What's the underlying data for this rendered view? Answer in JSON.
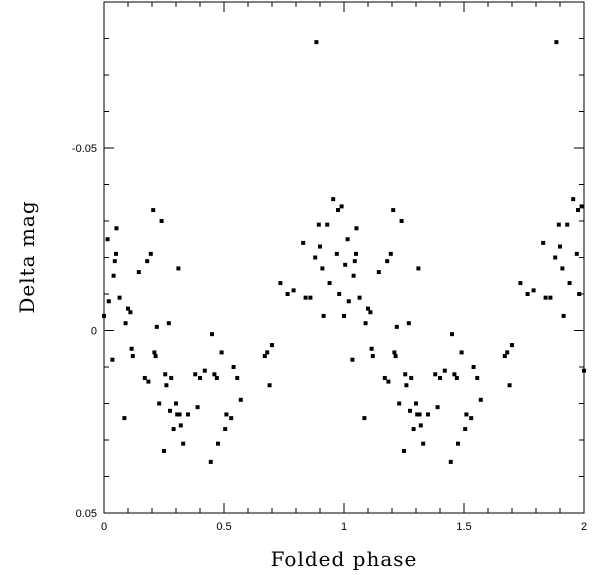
{
  "chart_data": {
    "type": "scatter",
    "title": "",
    "xlabel": "Folded phase",
    "ylabel": "Delta mag",
    "xlim": [
      0,
      2
    ],
    "ylim": [
      0.05,
      -0.09
    ],
    "y_inverted": true,
    "grid": false,
    "x_ticks": [
      0,
      0.5,
      1,
      1.5,
      2
    ],
    "x_tick_labels": [
      "0",
      "0.5",
      "1",
      "1.5",
      "2"
    ],
    "y_ticks": [
      0.05,
      0,
      -0.05
    ],
    "y_tick_labels": [
      "0.05",
      "0",
      "-0.05"
    ],
    "marker_color": "#000000",
    "points": [
      [
        0.0,
        -0.004
      ],
      [
        0.015,
        -0.025
      ],
      [
        0.02,
        -0.008
      ],
      [
        0.035,
        0.008
      ],
      [
        0.04,
        -0.015
      ],
      [
        0.045,
        -0.019
      ],
      [
        0.05,
        -0.021
      ],
      [
        0.052,
        -0.028
      ],
      [
        0.065,
        -0.009
      ],
      [
        0.085,
        0.024
      ],
      [
        0.09,
        -0.002
      ],
      [
        0.1,
        -0.006
      ],
      [
        0.11,
        -0.005
      ],
      [
        0.115,
        0.005
      ],
      [
        0.12,
        0.007
      ],
      [
        0.145,
        -0.016
      ],
      [
        0.17,
        0.013
      ],
      [
        0.18,
        -0.019
      ],
      [
        0.185,
        0.014
      ],
      [
        0.195,
        -0.021
      ],
      [
        0.205,
        -0.033
      ],
      [
        0.21,
        0.006
      ],
      [
        0.215,
        0.007
      ],
      [
        0.22,
        -0.001
      ],
      [
        0.23,
        0.02
      ],
      [
        0.24,
        -0.03
      ],
      [
        0.25,
        0.033
      ],
      [
        0.255,
        0.012
      ],
      [
        0.26,
        0.015
      ],
      [
        0.27,
        -0.002
      ],
      [
        0.275,
        0.022
      ],
      [
        0.28,
        0.013
      ],
      [
        0.29,
        0.027
      ],
      [
        0.3,
        0.02
      ],
      [
        0.305,
        0.023
      ],
      [
        0.31,
        -0.017
      ],
      [
        0.315,
        0.023
      ],
      [
        0.32,
        0.026
      ],
      [
        0.33,
        0.031
      ],
      [
        0.35,
        0.023
      ],
      [
        0.38,
        0.012
      ],
      [
        0.39,
        0.021
      ],
      [
        0.4,
        0.013
      ],
      [
        0.42,
        0.011
      ],
      [
        0.445,
        0.036
      ],
      [
        0.45,
        0.001
      ],
      [
        0.46,
        0.012
      ],
      [
        0.47,
        0.013
      ],
      [
        0.475,
        0.031
      ],
      [
        0.49,
        0.006
      ],
      [
        0.505,
        0.027
      ],
      [
        0.51,
        0.023
      ],
      [
        0.53,
        0.024
      ],
      [
        0.54,
        0.01
      ],
      [
        0.555,
        0.013
      ],
      [
        0.57,
        0.019
      ],
      [
        0.67,
        0.007
      ],
      [
        0.68,
        0.006
      ],
      [
        0.69,
        0.015
      ],
      [
        0.7,
        0.004
      ],
      [
        0.735,
        -0.013
      ],
      [
        0.765,
        -0.01
      ],
      [
        0.79,
        -0.011
      ],
      [
        0.83,
        -0.024
      ],
      [
        0.84,
        -0.009
      ],
      [
        0.86,
        -0.009
      ],
      [
        0.88,
        -0.02
      ],
      [
        0.885,
        -0.079
      ],
      [
        0.895,
        -0.029
      ],
      [
        0.9,
        -0.023
      ],
      [
        0.91,
        -0.017
      ],
      [
        0.915,
        -0.004
      ],
      [
        0.93,
        -0.029
      ],
      [
        0.94,
        -0.013
      ],
      [
        0.955,
        -0.036
      ],
      [
        0.97,
        -0.021
      ],
      [
        0.975,
        -0.033
      ],
      [
        0.98,
        -0.01
      ],
      [
        0.99,
        -0.034
      ],
      [
        1.0,
        -0.004
      ],
      [
        1.005,
        -0.018
      ],
      [
        1.015,
        -0.025
      ],
      [
        1.02,
        -0.008
      ],
      [
        1.035,
        0.008
      ],
      [
        1.04,
        -0.015
      ],
      [
        1.045,
        -0.019
      ],
      [
        1.05,
        -0.021
      ],
      [
        1.052,
        -0.028
      ],
      [
        1.065,
        -0.009
      ],
      [
        1.085,
        0.024
      ],
      [
        1.09,
        -0.002
      ],
      [
        1.1,
        -0.006
      ],
      [
        1.11,
        -0.005
      ],
      [
        1.115,
        0.005
      ],
      [
        1.12,
        0.007
      ],
      [
        1.145,
        -0.016
      ],
      [
        1.17,
        0.013
      ],
      [
        1.18,
        -0.019
      ],
      [
        1.185,
        0.014
      ],
      [
        1.195,
        -0.021
      ],
      [
        1.205,
        -0.033
      ],
      [
        1.21,
        0.006
      ],
      [
        1.215,
        0.007
      ],
      [
        1.22,
        -0.001
      ],
      [
        1.23,
        0.02
      ],
      [
        1.24,
        -0.03
      ],
      [
        1.25,
        0.033
      ],
      [
        1.255,
        0.012
      ],
      [
        1.26,
        0.015
      ],
      [
        1.27,
        -0.002
      ],
      [
        1.275,
        0.022
      ],
      [
        1.28,
        0.013
      ],
      [
        1.29,
        0.027
      ],
      [
        1.3,
        0.02
      ],
      [
        1.305,
        0.023
      ],
      [
        1.31,
        -0.017
      ],
      [
        1.315,
        0.023
      ],
      [
        1.32,
        0.026
      ],
      [
        1.33,
        0.031
      ],
      [
        1.35,
        0.023
      ],
      [
        1.38,
        0.012
      ],
      [
        1.39,
        0.021
      ],
      [
        1.4,
        0.013
      ],
      [
        1.42,
        0.011
      ],
      [
        1.445,
        0.036
      ],
      [
        1.45,
        0.001
      ],
      [
        1.46,
        0.012
      ],
      [
        1.47,
        0.013
      ],
      [
        1.475,
        0.031
      ],
      [
        1.49,
        0.006
      ],
      [
        1.505,
        0.027
      ],
      [
        1.51,
        0.023
      ],
      [
        1.53,
        0.024
      ],
      [
        1.54,
        0.01
      ],
      [
        1.555,
        0.013
      ],
      [
        1.57,
        0.019
      ],
      [
        1.67,
        0.007
      ],
      [
        1.68,
        0.006
      ],
      [
        1.69,
        0.015
      ],
      [
        1.7,
        0.004
      ],
      [
        1.735,
        -0.013
      ],
      [
        1.765,
        -0.01
      ],
      [
        1.79,
        -0.011
      ],
      [
        1.83,
        -0.024
      ],
      [
        1.84,
        -0.009
      ],
      [
        1.86,
        -0.009
      ],
      [
        1.88,
        -0.02
      ],
      [
        1.885,
        -0.079
      ],
      [
        1.895,
        -0.029
      ],
      [
        1.9,
        -0.023
      ],
      [
        1.91,
        -0.017
      ],
      [
        1.915,
        -0.004
      ],
      [
        1.93,
        -0.029
      ],
      [
        1.94,
        -0.013
      ],
      [
        1.955,
        -0.036
      ],
      [
        1.97,
        -0.021
      ],
      [
        1.975,
        -0.033
      ],
      [
        1.98,
        -0.01
      ],
      [
        1.99,
        -0.034
      ],
      [
        2.0,
        0.011
      ]
    ]
  }
}
